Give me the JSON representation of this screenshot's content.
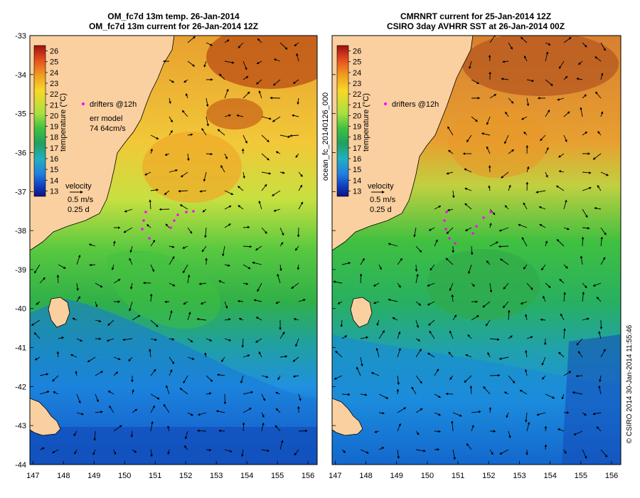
{
  "left_panel": {
    "title_line1": "OM_fc7d 13m temp. 26-Jan-2014",
    "title_line2": "OM_fc7d 13m current for 26-Jan-2014 12Z",
    "legend": {
      "drifters": "drifters @12h",
      "err_line1": "err model",
      "err_line2": "74 64cm/s"
    },
    "colorbar_label": "temperature (°C)",
    "velocity": {
      "label": "velocity",
      "speed": "0.5 m/s",
      "time": "0.25 d"
    }
  },
  "right_panel": {
    "title_line1": "CMRNRT current for 25-Jan-2014 12Z",
    "title_line2": "CSIRO 3day AVHRR SST at 26-Jan-2014 00Z",
    "legend": {
      "drifters": "drifters @12h"
    },
    "colorbar_label": "temperature (°C)",
    "velocity": {
      "label": "velocity",
      "speed": "0.5 m/s",
      "time": "0.25 d"
    }
  },
  "side_label": "ocean_fc_20140126_000",
  "footer_label": "© CSIRO 2014   30-Jan-2014 11:55:46",
  "colorbar_ticks": [
    "26",
    "25",
    "24",
    "23",
    "22",
    "21",
    "20",
    "19",
    "18",
    "17",
    "16",
    "15",
    "14",
    "13"
  ],
  "lat_ticks": [
    "-33",
    "-34",
    "-35",
    "-36",
    "-37",
    "-38",
    "-39",
    "-40",
    "-41",
    "-42",
    "-43",
    "-44"
  ],
  "lon_ticks": [
    "147",
    "148",
    "149",
    "150",
    "151",
    "152",
    "153",
    "154",
    "155",
    "156"
  ],
  "colors": {
    "land": "#fad0a0",
    "warm_1": "#b04010",
    "warm_2": "#e89020",
    "warm_3": "#f0c030",
    "mid_1": "#c8e040",
    "mid_2": "#40c040",
    "mid_3": "#20a080",
    "cool_1": "#2090e0",
    "cool_2": "#1040c0",
    "drifter": "#ff00ff"
  }
}
